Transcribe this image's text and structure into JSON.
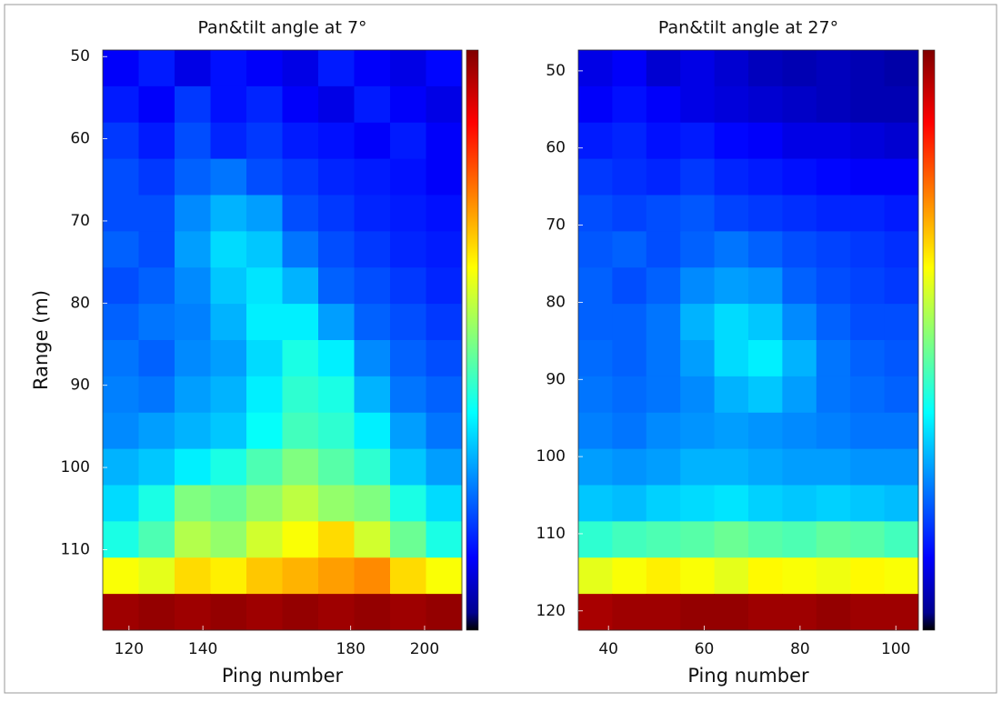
{
  "chart_data": [
    {
      "type": "heatmap",
      "title": "Pan&tilt angle at 7°",
      "y_label": "Range (m)",
      "x_label": "Ping number",
      "xlim": [
        112.9,
        210.1
      ],
      "ylim": [
        49.2,
        119.8
      ],
      "y_reversed": true,
      "xticks": [
        120,
        140,
        180,
        200
      ],
      "yticks": [
        50,
        60,
        70,
        80,
        90,
        100,
        110
      ],
      "clim": [
        0,
        1
      ],
      "colormap": "jet",
      "z": [
        [
          0.12,
          0.15,
          0.1,
          0.14,
          0.12,
          0.1,
          0.15,
          0.12,
          0.1,
          0.13
        ],
        [
          0.15,
          0.12,
          0.18,
          0.14,
          0.16,
          0.12,
          0.1,
          0.15,
          0.12,
          0.1
        ],
        [
          0.18,
          0.15,
          0.2,
          0.16,
          0.18,
          0.15,
          0.14,
          0.12,
          0.15,
          0.12
        ],
        [
          0.2,
          0.18,
          0.22,
          0.24,
          0.2,
          0.18,
          0.16,
          0.15,
          0.14,
          0.12
        ],
        [
          0.2,
          0.2,
          0.26,
          0.3,
          0.28,
          0.2,
          0.18,
          0.16,
          0.15,
          0.14
        ],
        [
          0.22,
          0.2,
          0.28,
          0.34,
          0.32,
          0.24,
          0.2,
          0.18,
          0.16,
          0.15
        ],
        [
          0.2,
          0.22,
          0.26,
          0.32,
          0.35,
          0.3,
          0.22,
          0.2,
          0.18,
          0.16
        ],
        [
          0.22,
          0.24,
          0.25,
          0.3,
          0.36,
          0.36,
          0.28,
          0.22,
          0.2,
          0.18
        ],
        [
          0.24,
          0.22,
          0.26,
          0.28,
          0.34,
          0.4,
          0.36,
          0.26,
          0.22,
          0.2
        ],
        [
          0.25,
          0.24,
          0.28,
          0.3,
          0.36,
          0.42,
          0.4,
          0.3,
          0.24,
          0.22
        ],
        [
          0.26,
          0.28,
          0.3,
          0.32,
          0.38,
          0.44,
          0.42,
          0.36,
          0.28,
          0.24
        ],
        [
          0.3,
          0.32,
          0.36,
          0.4,
          0.45,
          0.5,
          0.46,
          0.42,
          0.32,
          0.28
        ],
        [
          0.34,
          0.4,
          0.5,
          0.48,
          0.52,
          0.56,
          0.52,
          0.5,
          0.4,
          0.34
        ],
        [
          0.4,
          0.45,
          0.55,
          0.52,
          0.58,
          0.62,
          0.66,
          0.58,
          0.48,
          0.4
        ],
        [
          0.62,
          0.6,
          0.66,
          0.64,
          0.68,
          0.7,
          0.72,
          0.74,
          0.66,
          0.62
        ],
        [
          0.97,
          0.98,
          0.97,
          0.98,
          0.97,
          0.98,
          0.97,
          0.98,
          0.97,
          0.98
        ]
      ]
    },
    {
      "type": "heatmap",
      "title": "Pan&tilt angle at 27°",
      "x_label": "Ping number",
      "xlim": [
        33.7,
        104.7
      ],
      "ylim": [
        47.3,
        122.5
      ],
      "y_reversed": true,
      "xticks": [
        40,
        60,
        80,
        100
      ],
      "yticks": [
        50,
        60,
        70,
        80,
        90,
        100,
        110,
        120
      ],
      "clim": [
        0,
        1
      ],
      "colormap": "jet",
      "z": [
        [
          0.1,
          0.12,
          0.08,
          0.1,
          0.08,
          0.06,
          0.05,
          0.06,
          0.05,
          0.04
        ],
        [
          0.12,
          0.14,
          0.12,
          0.1,
          0.09,
          0.08,
          0.07,
          0.06,
          0.05,
          0.05
        ],
        [
          0.15,
          0.16,
          0.14,
          0.15,
          0.13,
          0.12,
          0.1,
          0.1,
          0.09,
          0.08
        ],
        [
          0.18,
          0.17,
          0.16,
          0.18,
          0.16,
          0.15,
          0.14,
          0.13,
          0.12,
          0.12
        ],
        [
          0.2,
          0.19,
          0.2,
          0.21,
          0.19,
          0.18,
          0.17,
          0.16,
          0.16,
          0.15
        ],
        [
          0.21,
          0.22,
          0.2,
          0.22,
          0.24,
          0.22,
          0.2,
          0.19,
          0.18,
          0.17
        ],
        [
          0.22,
          0.2,
          0.22,
          0.26,
          0.28,
          0.27,
          0.22,
          0.2,
          0.19,
          0.18
        ],
        [
          0.22,
          0.22,
          0.24,
          0.3,
          0.34,
          0.32,
          0.26,
          0.22,
          0.2,
          0.2
        ],
        [
          0.23,
          0.22,
          0.24,
          0.28,
          0.34,
          0.36,
          0.3,
          0.24,
          0.22,
          0.21
        ],
        [
          0.24,
          0.23,
          0.24,
          0.26,
          0.3,
          0.32,
          0.28,
          0.24,
          0.23,
          0.22
        ],
        [
          0.25,
          0.24,
          0.26,
          0.27,
          0.28,
          0.27,
          0.26,
          0.25,
          0.24,
          0.24
        ],
        [
          0.28,
          0.27,
          0.28,
          0.3,
          0.3,
          0.29,
          0.28,
          0.28,
          0.27,
          0.27
        ],
        [
          0.32,
          0.31,
          0.33,
          0.34,
          0.35,
          0.33,
          0.32,
          0.33,
          0.32,
          0.31
        ],
        [
          0.42,
          0.44,
          0.45,
          0.46,
          0.48,
          0.46,
          0.45,
          0.47,
          0.46,
          0.44
        ],
        [
          0.6,
          0.62,
          0.64,
          0.62,
          0.6,
          0.63,
          0.62,
          0.61,
          0.63,
          0.62
        ],
        [
          0.96,
          0.97,
          0.97,
          0.98,
          0.98,
          0.97,
          0.97,
          0.98,
          0.97,
          0.97
        ]
      ]
    }
  ]
}
